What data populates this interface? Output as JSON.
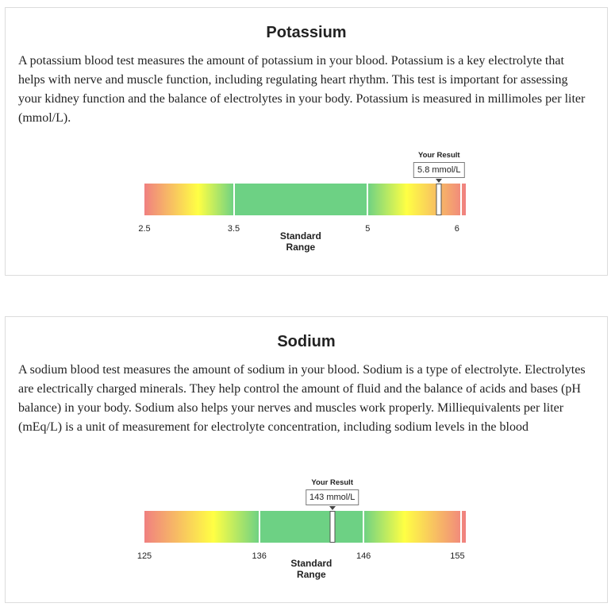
{
  "potassium": {
    "title": "Potassium",
    "description": "A potassium blood test measures the amount of potassium in your blood. Potassium is a key electrolyte that helps with nerve and muscle function, including regulating heart rhythm. This test is important for assessing your kidney function and the balance of electrolytes in your body. Potassium is measured in millimoles per liter (mmol/L).",
    "your_result_label": "Your Result",
    "result_text": "5.8 mmol/L",
    "result_value": 5.8,
    "scale_min": 2.5,
    "scale_max": 6.1,
    "standard_low": 3.5,
    "standard_high": 5,
    "ticks": [
      "2.5",
      "3.5",
      "5",
      "6"
    ],
    "tick_values": [
      2.5,
      3.5,
      5,
      6
    ],
    "standard_label_line1": "Standard",
    "standard_label_line2": "Range"
  },
  "sodium": {
    "title": "Sodium",
    "description": "A sodium blood test measures the amount of sodium in your blood. Sodium is a type of electrolyte. Electrolytes are electrically charged minerals. They help control the amount of fluid and the balance of acids and bases (pH balance) in your body. Sodium also helps your nerves and muscles work properly. Milliequivalents per liter (mEq/L) is a unit of measurement for electrolyte concentration, including sodium levels in the blood",
    "your_result_label": "Your Result",
    "result_text": "143 mmol/L",
    "result_value": 143,
    "scale_min": 125,
    "scale_max": 155.8,
    "standard_low": 136,
    "standard_high": 146,
    "ticks": [
      "125",
      "136",
      "146",
      "155"
    ],
    "tick_values": [
      125,
      136,
      146,
      155
    ],
    "standard_label_line1": "Standard",
    "standard_label_line2": "Range"
  },
  "colors": {
    "normal": "#6dd184",
    "warning": "#ffff44",
    "danger": "#f08080"
  }
}
